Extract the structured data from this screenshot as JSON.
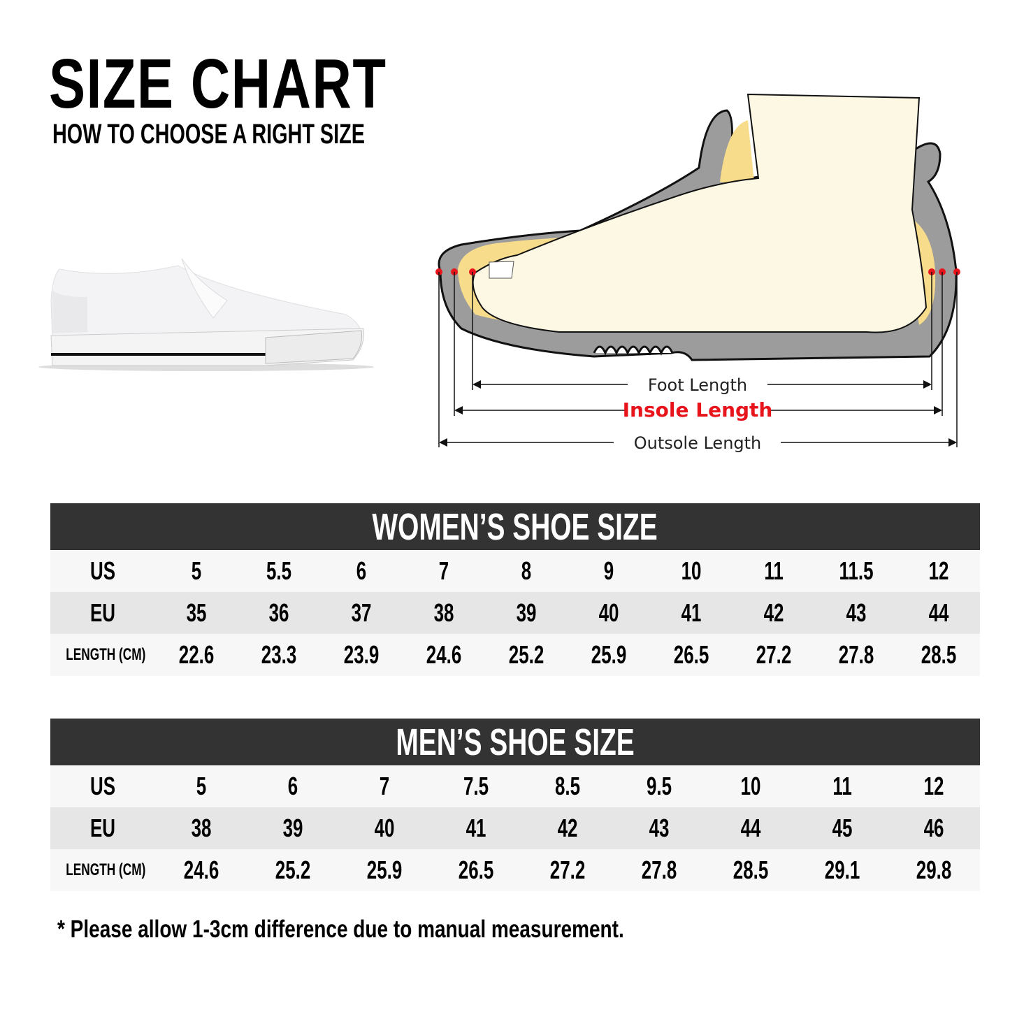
{
  "header": {
    "title": "SIZE CHART",
    "subtitle": "HOW TO CHOOSE A RIGHT SIZE"
  },
  "diagram": {
    "foot_length": "Foot Length",
    "insole_length": "Insole Length",
    "outsole_length": "Outsole Length",
    "highlight_color": "#e8141c"
  },
  "women": {
    "title": "WOMEN’S SHOE SIZE",
    "row_labels": [
      "US",
      "EU",
      "LENGTH (CM)"
    ],
    "us": [
      "5",
      "5.5",
      "6",
      "7",
      "8",
      "9",
      "10",
      "11",
      "11.5",
      "12"
    ],
    "eu": [
      "35",
      "36",
      "37",
      "38",
      "39",
      "40",
      "41",
      "42",
      "43",
      "44"
    ],
    "length_cm": [
      "22.6",
      "23.3",
      "23.9",
      "24.6",
      "25.2",
      "25.9",
      "26.5",
      "27.2",
      "27.8",
      "28.5"
    ]
  },
  "men": {
    "title": "MEN’S SHOE SIZE",
    "row_labels": [
      "US",
      "EU",
      "LENGTH (CM)"
    ],
    "us": [
      "5",
      "6",
      "7",
      "7.5",
      "8.5",
      "9.5",
      "10",
      "11",
      "12"
    ],
    "eu": [
      "38",
      "39",
      "40",
      "41",
      "42",
      "43",
      "44",
      "45",
      "46"
    ],
    "length_cm": [
      "24.6",
      "25.2",
      "25.9",
      "26.5",
      "27.2",
      "27.8",
      "28.5",
      "29.1",
      "29.8"
    ]
  },
  "footnote": "* Please allow 1-3cm difference due to manual measurement."
}
